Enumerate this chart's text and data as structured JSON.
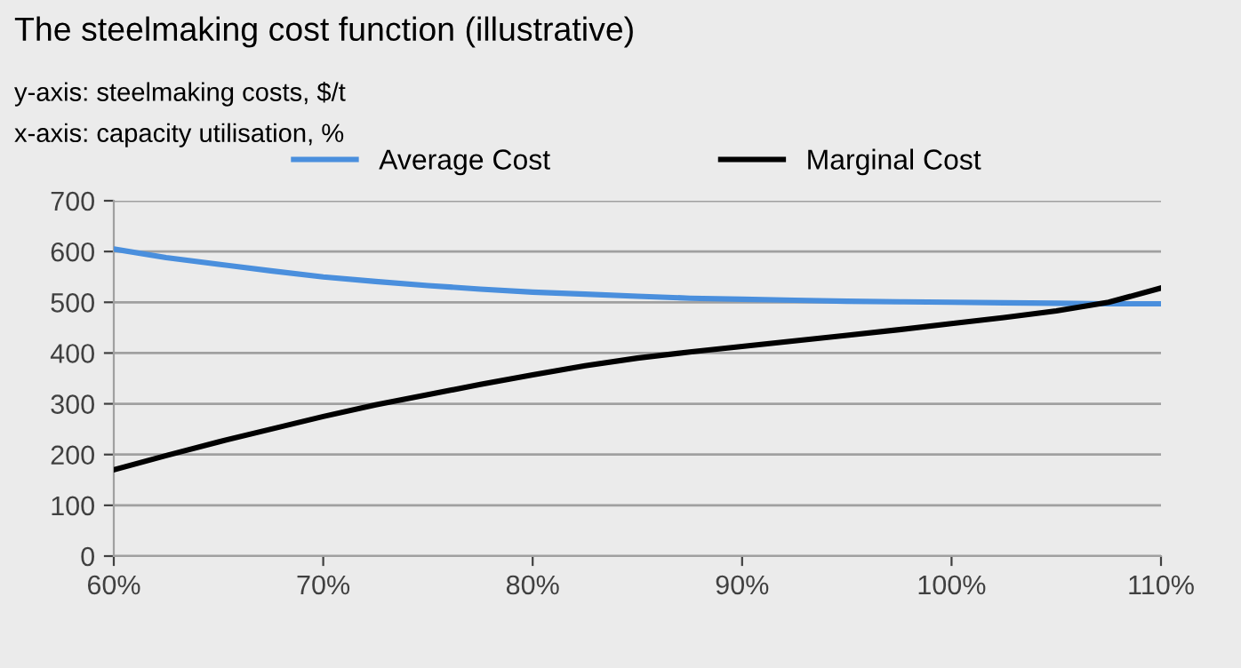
{
  "chart_data": {
    "type": "line",
    "title": "The steelmaking cost function (illustrative)",
    "subtitle": "y-axis: steelmaking costs, $/t\nx-axis: capacity utilisation, %",
    "x": [
      60,
      62.5,
      65,
      67.5,
      70,
      72.5,
      75,
      77.5,
      80,
      82.5,
      85,
      87.5,
      90,
      92.5,
      95,
      97.5,
      100,
      102.5,
      105,
      107.5,
      110
    ],
    "series": [
      {
        "name": "Average Cost",
        "color": "#4a8fdd",
        "values": [
          605,
          588,
          575,
          562,
          550,
          541,
          533,
          526,
          520,
          516,
          512,
          508,
          506,
          504,
          502,
          501,
          500,
          499,
          498,
          497,
          497
        ]
      },
      {
        "name": "Marginal Cost",
        "color": "#000000",
        "values": [
          170,
          198,
          225,
          250,
          275,
          298,
          318,
          338,
          357,
          375,
          390,
          402,
          413,
          424,
          435,
          446,
          458,
          470,
          483,
          500,
          528
        ]
      }
    ],
    "xlim": [
      60,
      110
    ],
    "xticks": [
      {
        "value": 60,
        "label": "60%"
      },
      {
        "value": 70,
        "label": "70%"
      },
      {
        "value": 80,
        "label": "80%"
      },
      {
        "value": 90,
        "label": "90%"
      },
      {
        "value": 100,
        "label": "100%"
      },
      {
        "value": 110,
        "label": "110%"
      }
    ],
    "ylim": [
      0,
      700
    ],
    "yticks": [
      0,
      100,
      200,
      300,
      400,
      500,
      600,
      700
    ],
    "grid": "y",
    "legend": "top",
    "marker": "none",
    "line_style": "solid"
  }
}
